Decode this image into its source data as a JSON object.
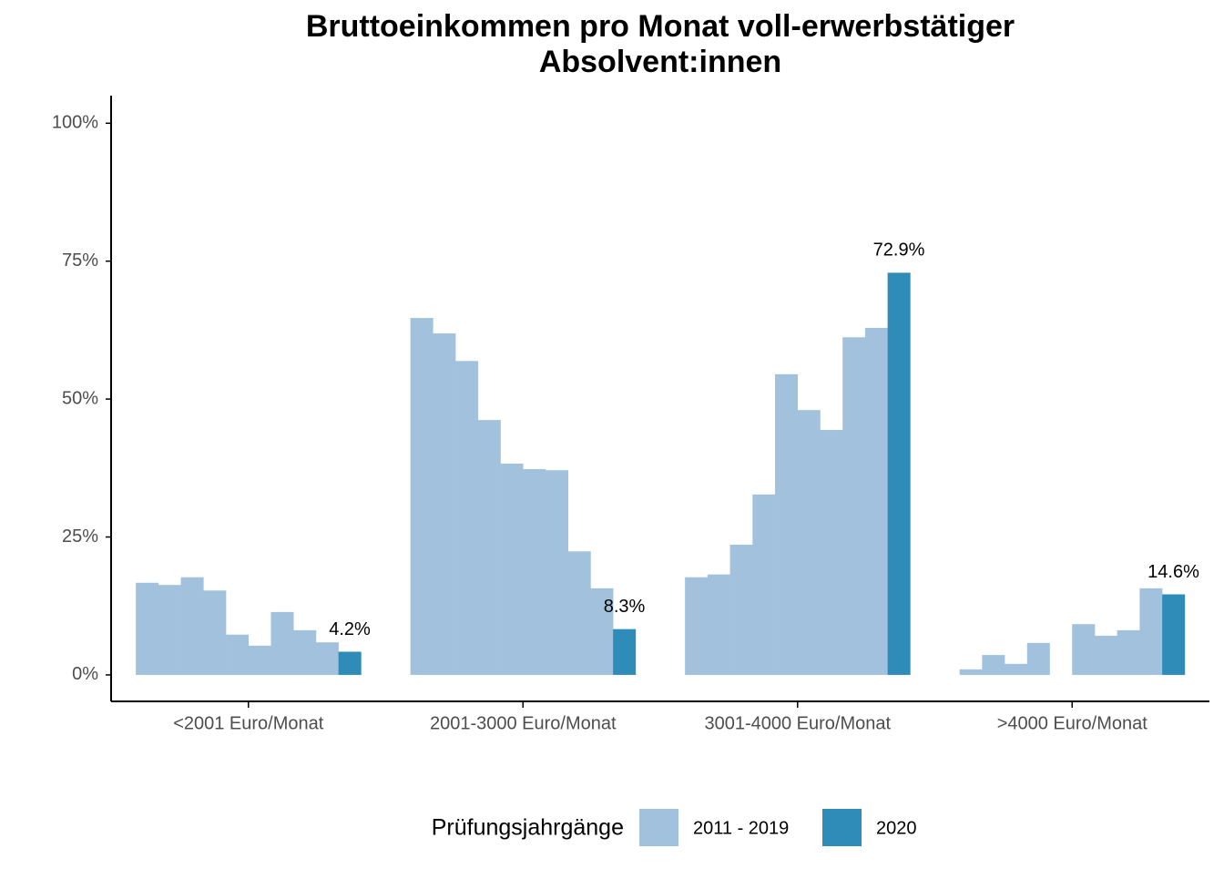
{
  "chart_data": {
    "type": "bar",
    "title": [
      "Bruttoeinkommen pro Monat voll-erwerbstätiger",
      "Absolvent:innen"
    ],
    "categories": [
      "<2001 Euro/Monat",
      "2001-3000 Euro/Monat",
      "3001-4000 Euro/Monat",
      ">4000 Euro/Monat"
    ],
    "series": [
      {
        "name": "2011 - 2019",
        "color": "#a1c1dd",
        "values": [
          [
            16.7,
            16.3,
            17.7,
            15.3,
            7.3,
            5.3,
            11.4,
            8.1,
            5.9
          ],
          [
            64.7,
            61.9,
            56.9,
            46.2,
            38.3,
            37.3,
            37.1,
            22.4,
            15.7
          ],
          [
            17.7,
            18.2,
            23.6,
            32.7,
            54.5,
            48.0,
            44.4,
            61.2,
            62.9
          ],
          [
            1.0,
            3.6,
            2.0,
            5.8,
            null,
            9.2,
            7.1,
            8.1,
            15.7
          ]
        ]
      },
      {
        "name": "2020",
        "color": "#2f8bb8",
        "values": [
          4.2,
          8.3,
          72.9,
          14.6
        ],
        "value_labels": [
          "4.2%",
          "8.3%",
          "72.9%",
          "14.6%"
        ]
      }
    ],
    "ylim": [
      -4.8,
      105
    ],
    "yticks": [
      {
        "value": 0,
        "label": "0%"
      },
      {
        "value": 25,
        "label": "25%"
      },
      {
        "value": 50,
        "label": "50%"
      },
      {
        "value": 75,
        "label": "75%"
      },
      {
        "value": 100,
        "label": "100%"
      }
    ],
    "legend_title": "Prüfungsjahrgänge",
    "legend": "bottom"
  }
}
